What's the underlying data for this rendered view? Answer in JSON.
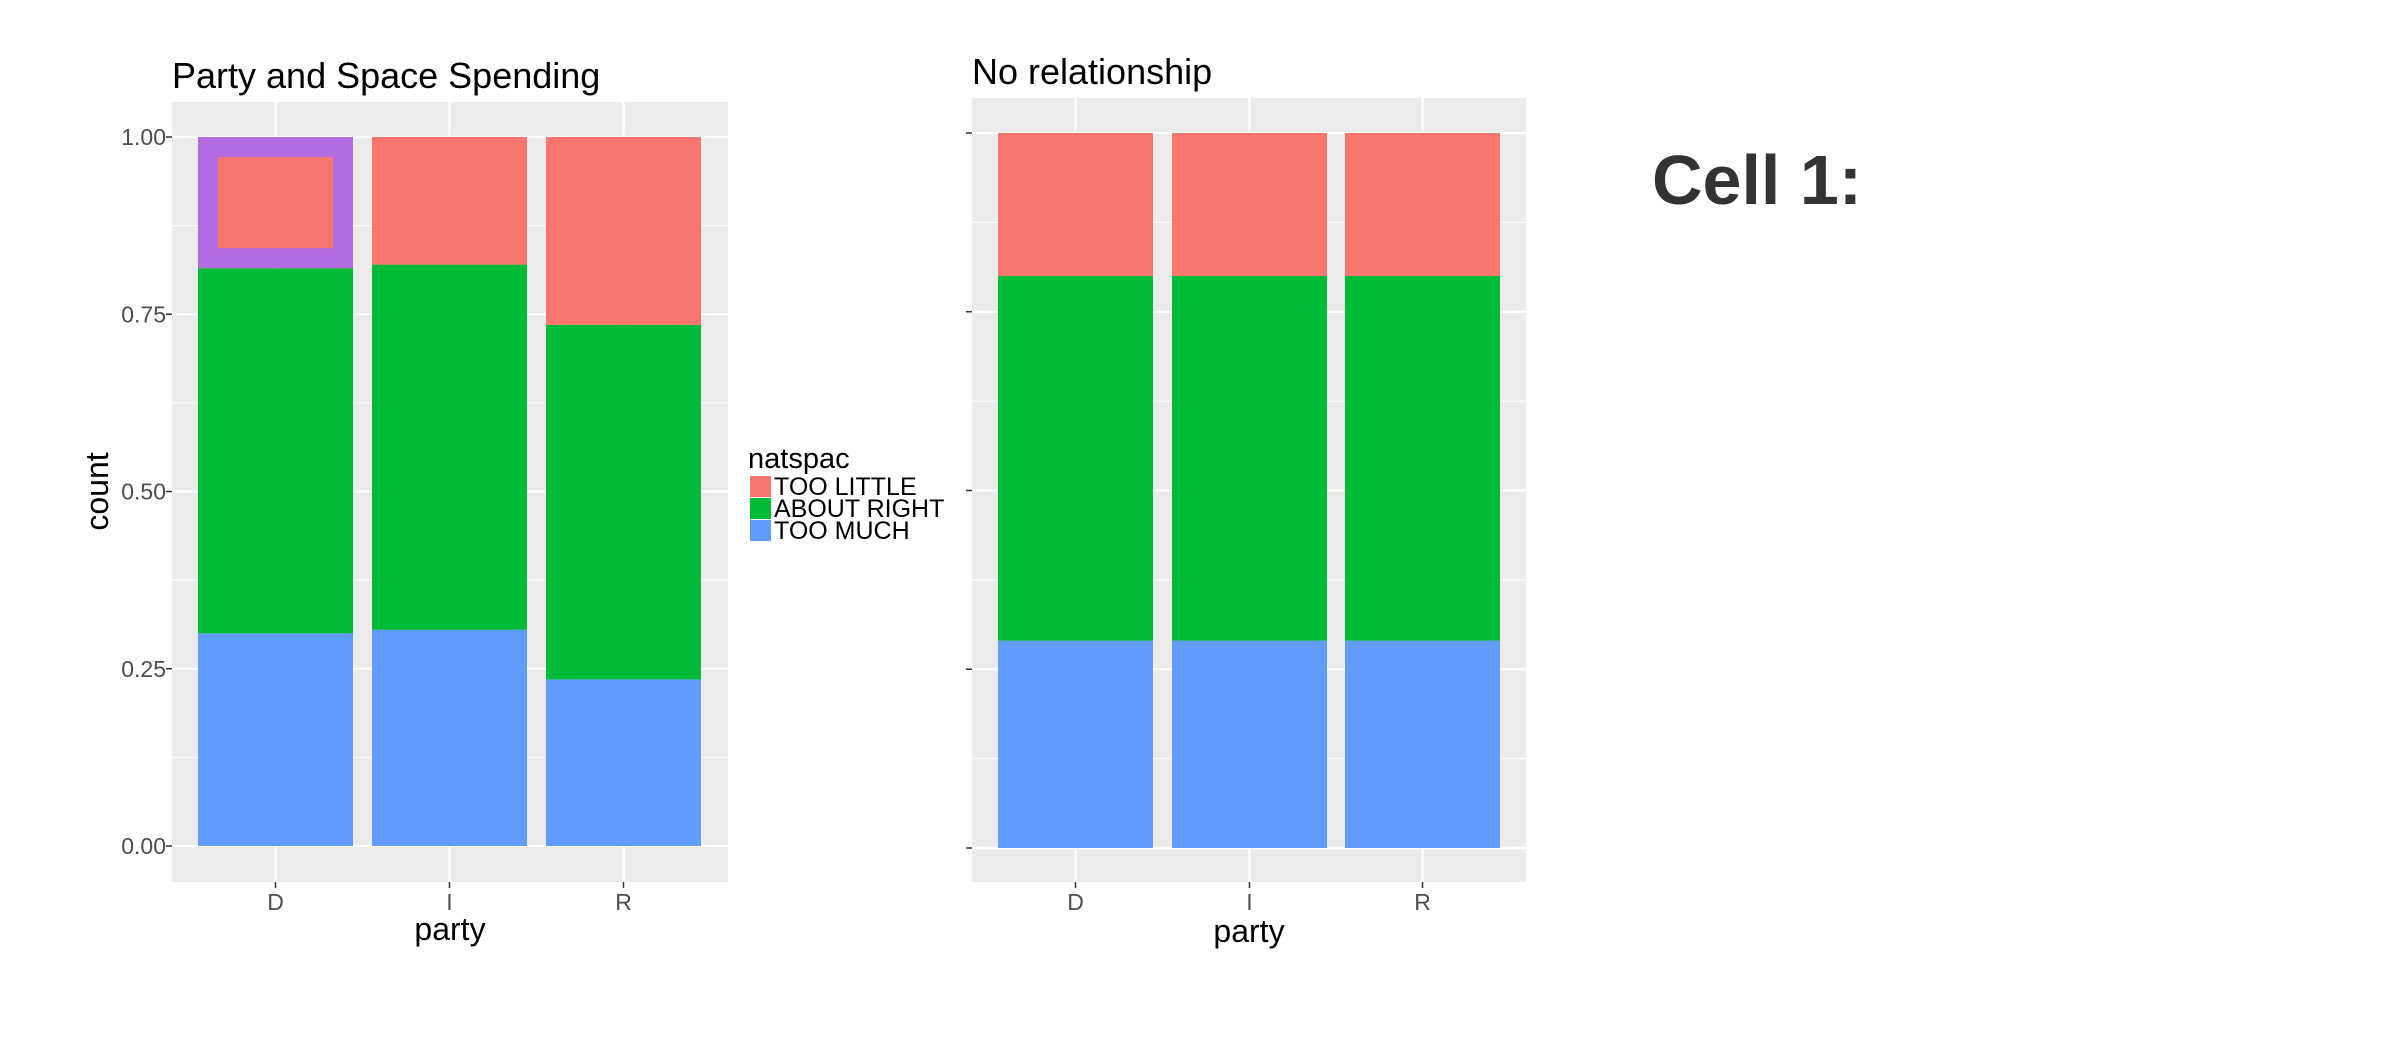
{
  "colors": {
    "too_little": "#F8766D",
    "about_right": "#00BA38",
    "too_much": "#619CFF",
    "highlight": "#B36BE0",
    "panel": "#EBEBEB",
    "grid": "#FFFFFF"
  },
  "legend": {
    "title": "natspac",
    "items": [
      "TOO LITTLE",
      "ABOUT RIGHT",
      "TOO MUCH"
    ]
  },
  "cell_label": "Cell 1:",
  "chart_data": [
    {
      "type": "bar",
      "stacked": true,
      "title": "Party and Space Spending",
      "xlabel": "party",
      "ylabel": "count",
      "ylim": [
        0,
        1
      ],
      "yticks": [
        "0.00",
        "0.25",
        "0.50",
        "0.75",
        "1.00"
      ],
      "categories": [
        "D",
        "I",
        "R"
      ],
      "series": [
        {
          "name": "TOO MUCH",
          "values": [
            0.3,
            0.305,
            0.235
          ]
        },
        {
          "name": "ABOUT RIGHT",
          "values": [
            0.515,
            0.515,
            0.5
          ]
        },
        {
          "name": "TOO LITTLE",
          "values": [
            0.185,
            0.18,
            0.265
          ]
        }
      ],
      "highlight": {
        "category": "D",
        "series": "TOO LITTLE"
      }
    },
    {
      "type": "bar",
      "stacked": true,
      "title": "No relationship",
      "xlabel": "party",
      "ylabel": "",
      "ylim": [
        0,
        1
      ],
      "yticks": [
        "",
        "",
        "",
        "",
        ""
      ],
      "categories": [
        "D",
        "I",
        "R"
      ],
      "series": [
        {
          "name": "TOO MUCH",
          "values": [
            0.29,
            0.29,
            0.29
          ]
        },
        {
          "name": "ABOUT RIGHT",
          "values": [
            0.51,
            0.51,
            0.51
          ]
        },
        {
          "name": "TOO LITTLE",
          "values": [
            0.2,
            0.2,
            0.2
          ]
        }
      ]
    }
  ]
}
